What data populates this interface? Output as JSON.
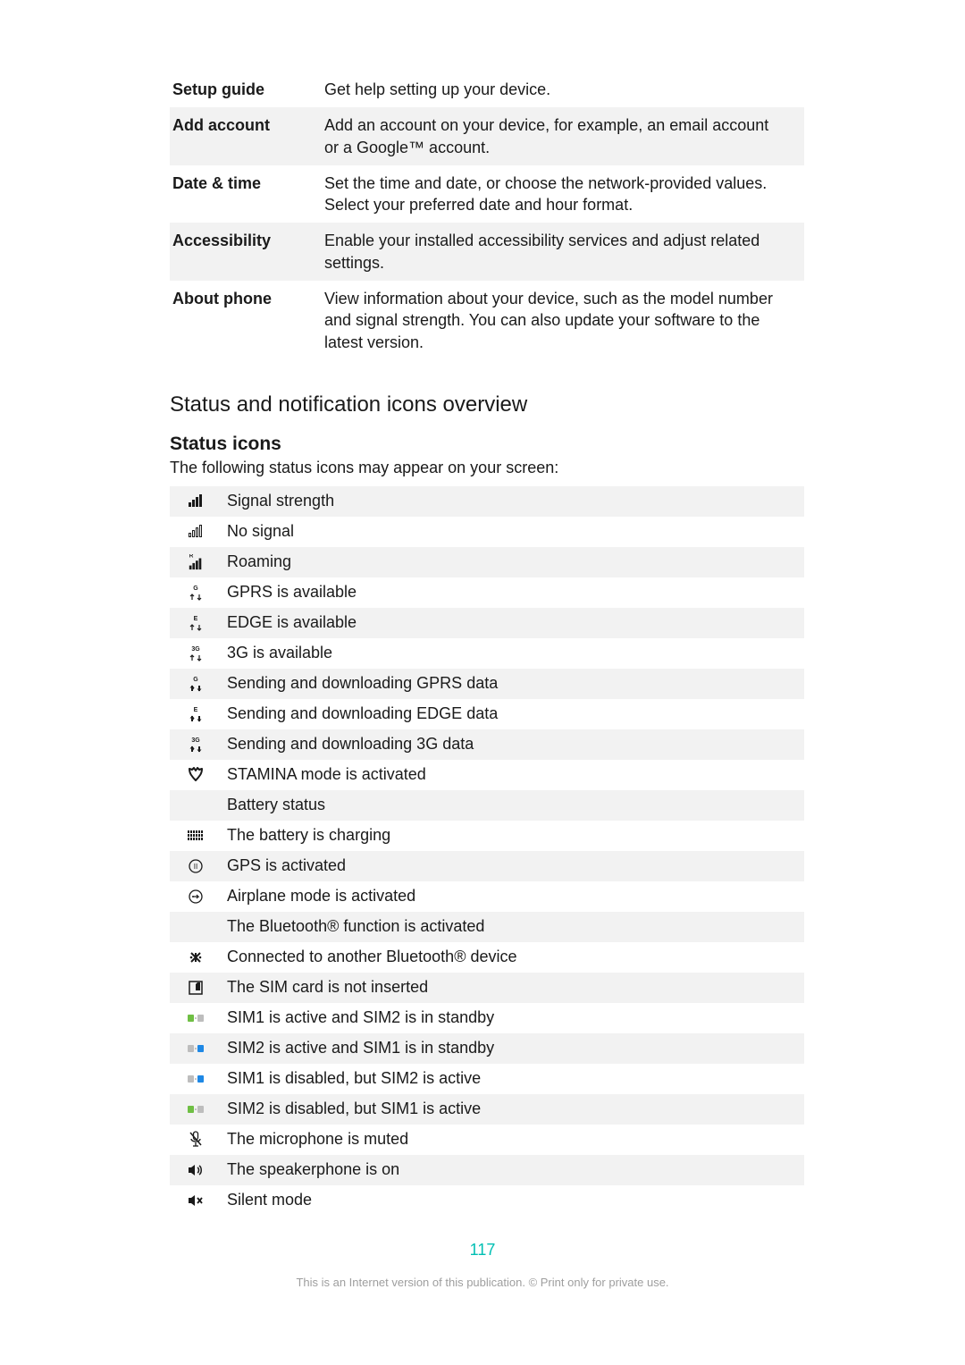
{
  "settings_rows": [
    {
      "label": "Setup guide",
      "desc": "Get help setting up your device.",
      "alt": false
    },
    {
      "label": "Add account",
      "desc": "Add an account on your device, for example, an email account or a Google™ account.",
      "alt": true
    },
    {
      "label": "Date & time",
      "desc": "Set the time and date, or choose the network-provided values. Select your preferred date and hour format.",
      "alt": false
    },
    {
      "label": "Accessibility",
      "desc": "Enable your installed accessibility services and adjust related settings.",
      "alt": true
    },
    {
      "label": "About phone",
      "desc": "View information about your device, such as the model number and signal strength. You can also update your software to the latest version.",
      "alt": false
    }
  ],
  "section_heading": "Status and notification icons overview",
  "status_heading": "Status icons",
  "status_intro": "The following status icons may appear on your screen:",
  "status_rows": [
    {
      "icon": "signal-strength",
      "label": "Signal strength",
      "alt": true
    },
    {
      "icon": "no-signal",
      "label": "No signal",
      "alt": false
    },
    {
      "icon": "roaming",
      "label": "Roaming",
      "alt": true
    },
    {
      "icon": "gprs-avail",
      "label": "GPRS is available",
      "alt": false
    },
    {
      "icon": "edge-avail",
      "label": "EDGE is available",
      "alt": true
    },
    {
      "icon": "3g-avail",
      "label": "3G is available",
      "alt": false
    },
    {
      "icon": "gprs-data",
      "label": "Sending and downloading GPRS data",
      "alt": true
    },
    {
      "icon": "edge-data",
      "label": "Sending and downloading EDGE data",
      "alt": false
    },
    {
      "icon": "3g-data",
      "label": "Sending and downloading 3G data",
      "alt": true
    },
    {
      "icon": "stamina",
      "label": "STAMINA mode is activated",
      "alt": false
    },
    {
      "icon": "",
      "label": "Battery status",
      "alt": true
    },
    {
      "icon": "battery-charging",
      "label": "The battery is charging",
      "alt": false
    },
    {
      "icon": "gps",
      "label": "GPS is activated",
      "alt": true
    },
    {
      "icon": "airplane",
      "label": "Airplane mode is activated",
      "alt": false
    },
    {
      "icon": "",
      "label": "The Bluetooth® function is activated",
      "alt": true
    },
    {
      "icon": "bt-connected",
      "label": "Connected to another Bluetooth® device",
      "alt": false
    },
    {
      "icon": "sim-missing",
      "label": "The SIM card is not inserted",
      "alt": true
    },
    {
      "icon": "sim1-active",
      "label": "SIM1 is active and SIM2 is in standby",
      "alt": false
    },
    {
      "icon": "sim2-active",
      "label": "SIM2 is active and SIM1 is in standby",
      "alt": true
    },
    {
      "icon": "sim1-disabled",
      "label": "SIM1 is disabled, but SIM2 is active",
      "alt": false
    },
    {
      "icon": "sim2-disabled",
      "label": "SIM2 is disabled, but SIM1 is active",
      "alt": true
    },
    {
      "icon": "mic-muted",
      "label": "The microphone is muted",
      "alt": false
    },
    {
      "icon": "speaker-on",
      "label": "The speakerphone is on",
      "alt": true
    },
    {
      "icon": "silent",
      "label": "Silent mode",
      "alt": false
    }
  ],
  "page_number": "117",
  "footer": "This is an Internet version of this publication. © Print only for private use.",
  "colors": {
    "alt_bg": "#f2f2f2",
    "text": "#1a1a1a",
    "page_number": "#00bfb3",
    "footer": "#9e9e9e",
    "sim_green": "#6fbf44",
    "sim_blue": "#1e88e5",
    "sim_grey": "#bdbdbd"
  }
}
